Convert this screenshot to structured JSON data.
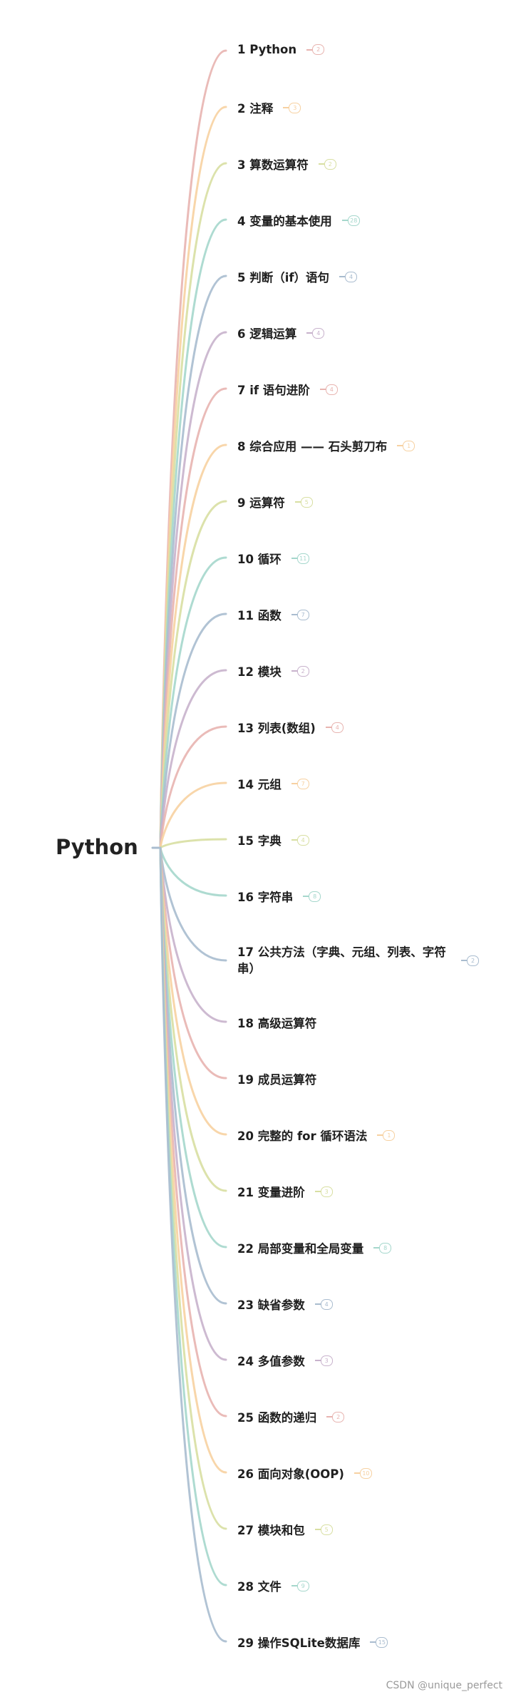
{
  "root": {
    "label": "Python"
  },
  "palette": [
    "#e8b4b0",
    "#f7d1a1",
    "#d8dfa2",
    "#a5d7cc",
    "#a9bccf",
    "#c8b2cc"
  ],
  "branches": [
    {
      "label": "1  Python",
      "count": "2"
    },
    {
      "label": "2 注释",
      "count": "3"
    },
    {
      "label": "3 算数运算符",
      "count": "2"
    },
    {
      "label": "4 变量的基本使用",
      "count": "28"
    },
    {
      "label": "5 判断（if）语句",
      "count": "4"
    },
    {
      "label": "6 逻辑运算",
      "count": "4"
    },
    {
      "label": "7 if 语句进阶",
      "count": "4"
    },
    {
      "label": "8 综合应用 —— 石头剪刀布",
      "count": "1"
    },
    {
      "label": "9 运算符",
      "count": "5"
    },
    {
      "label": "10 循环",
      "count": "11"
    },
    {
      "label": "11 函数",
      "count": "7"
    },
    {
      "label": "12 模块",
      "count": "2"
    },
    {
      "label": "13 列表(数组)",
      "count": "4"
    },
    {
      "label": "14 元组",
      "count": "7"
    },
    {
      "label": "15 字典",
      "count": "4"
    },
    {
      "label": "16 字符串",
      "count": "8"
    },
    {
      "label": "17 公共方法（字典、元组、列表、字符串）",
      "count": "2"
    },
    {
      "label": "18 高级运算符",
      "count": ""
    },
    {
      "label": "19 成员运算符",
      "count": ""
    },
    {
      "label": "20 完整的 for 循环语法",
      "count": "1"
    },
    {
      "label": "21 变量进阶",
      "count": "3"
    },
    {
      "label": "22 局部变量和全局变量",
      "count": "8"
    },
    {
      "label": "23 缺省参数",
      "count": "4"
    },
    {
      "label": "24 多值参数",
      "count": "3"
    },
    {
      "label": "25 函数的递归",
      "count": "2"
    },
    {
      "label": "26 面向对象(OOP)",
      "count": "10"
    },
    {
      "label": "27 模块和包",
      "count": "5"
    },
    {
      "label": "28 文件",
      "count": "9"
    },
    {
      "label": "29 操作SQLite数据库",
      "count": "15"
    }
  ],
  "watermark": "CSDN @unique_perfect"
}
